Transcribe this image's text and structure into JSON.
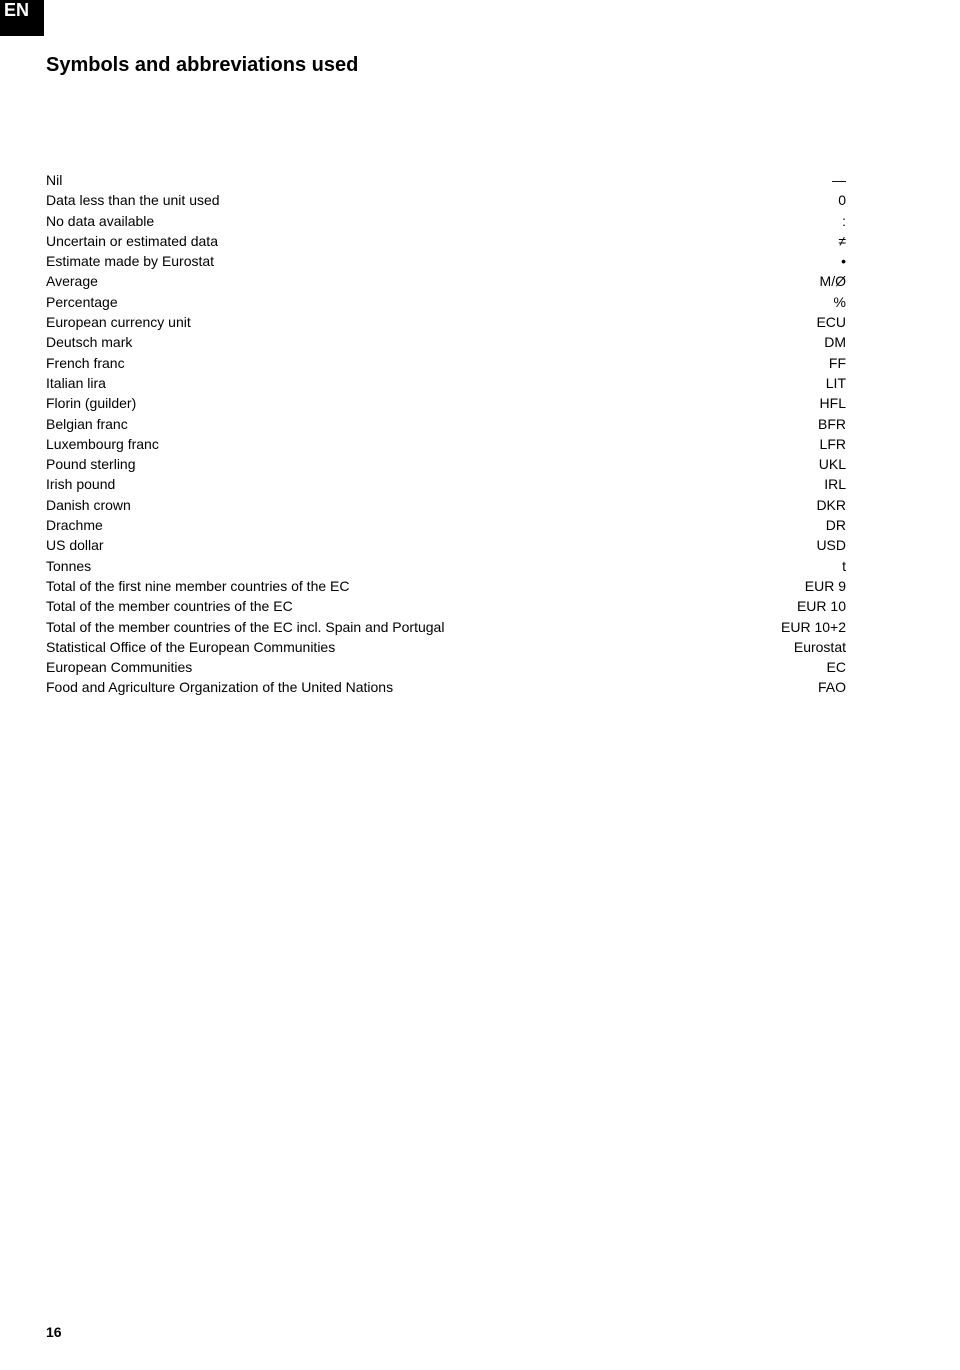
{
  "tab": "EN",
  "title": "Symbols and abbreviations used",
  "rows": [
    {
      "label": "Nil",
      "symbol": "—"
    },
    {
      "label": "Data less than the unit used",
      "symbol": "0"
    },
    {
      "label": "No data available",
      "symbol": ":"
    },
    {
      "label": "Uncertain or estimated data",
      "symbol": "≠"
    },
    {
      "label": "Estimate made by Eurostat",
      "symbol": "•"
    },
    {
      "label": "Average",
      "symbol": "M/Ø"
    },
    {
      "label": "Percentage",
      "symbol": "%"
    },
    {
      "label": "European currency unit",
      "symbol": "ECU"
    },
    {
      "label": "Deutsch mark",
      "symbol": "DM"
    },
    {
      "label": "French franc",
      "symbol": "FF"
    },
    {
      "label": "Italian lira",
      "symbol": "LIT"
    },
    {
      "label": "Florin (guilder)",
      "symbol": "HFL"
    },
    {
      "label": "Belgian franc",
      "symbol": "BFR"
    },
    {
      "label": "Luxembourg franc",
      "symbol": "LFR"
    },
    {
      "label": "Pound sterling",
      "symbol": "UKL"
    },
    {
      "label": "Irish pound",
      "symbol": "IRL"
    },
    {
      "label": "Danish crown",
      "symbol": "DKR"
    },
    {
      "label": "Drachme",
      "symbol": "DR"
    },
    {
      "label": "US dollar",
      "symbol": "USD"
    },
    {
      "label": "Tonnes",
      "symbol": "t"
    },
    {
      "label": "Total of the first nine member countries of the EC",
      "symbol": "EUR 9"
    },
    {
      "label": "Total of the member countries of the EC",
      "symbol": "EUR 10"
    },
    {
      "label": "Total of the member countries of the EC incl. Spain and Portugal",
      "symbol": "EUR 10+2"
    },
    {
      "label": "Statistical Office of the European Communities",
      "symbol": "Eurostat"
    },
    {
      "label": "European Communities",
      "symbol": "EC"
    },
    {
      "label": "Food and Agriculture Organization of the United Nations",
      "symbol": "FAO"
    }
  ],
  "page_number": "16"
}
